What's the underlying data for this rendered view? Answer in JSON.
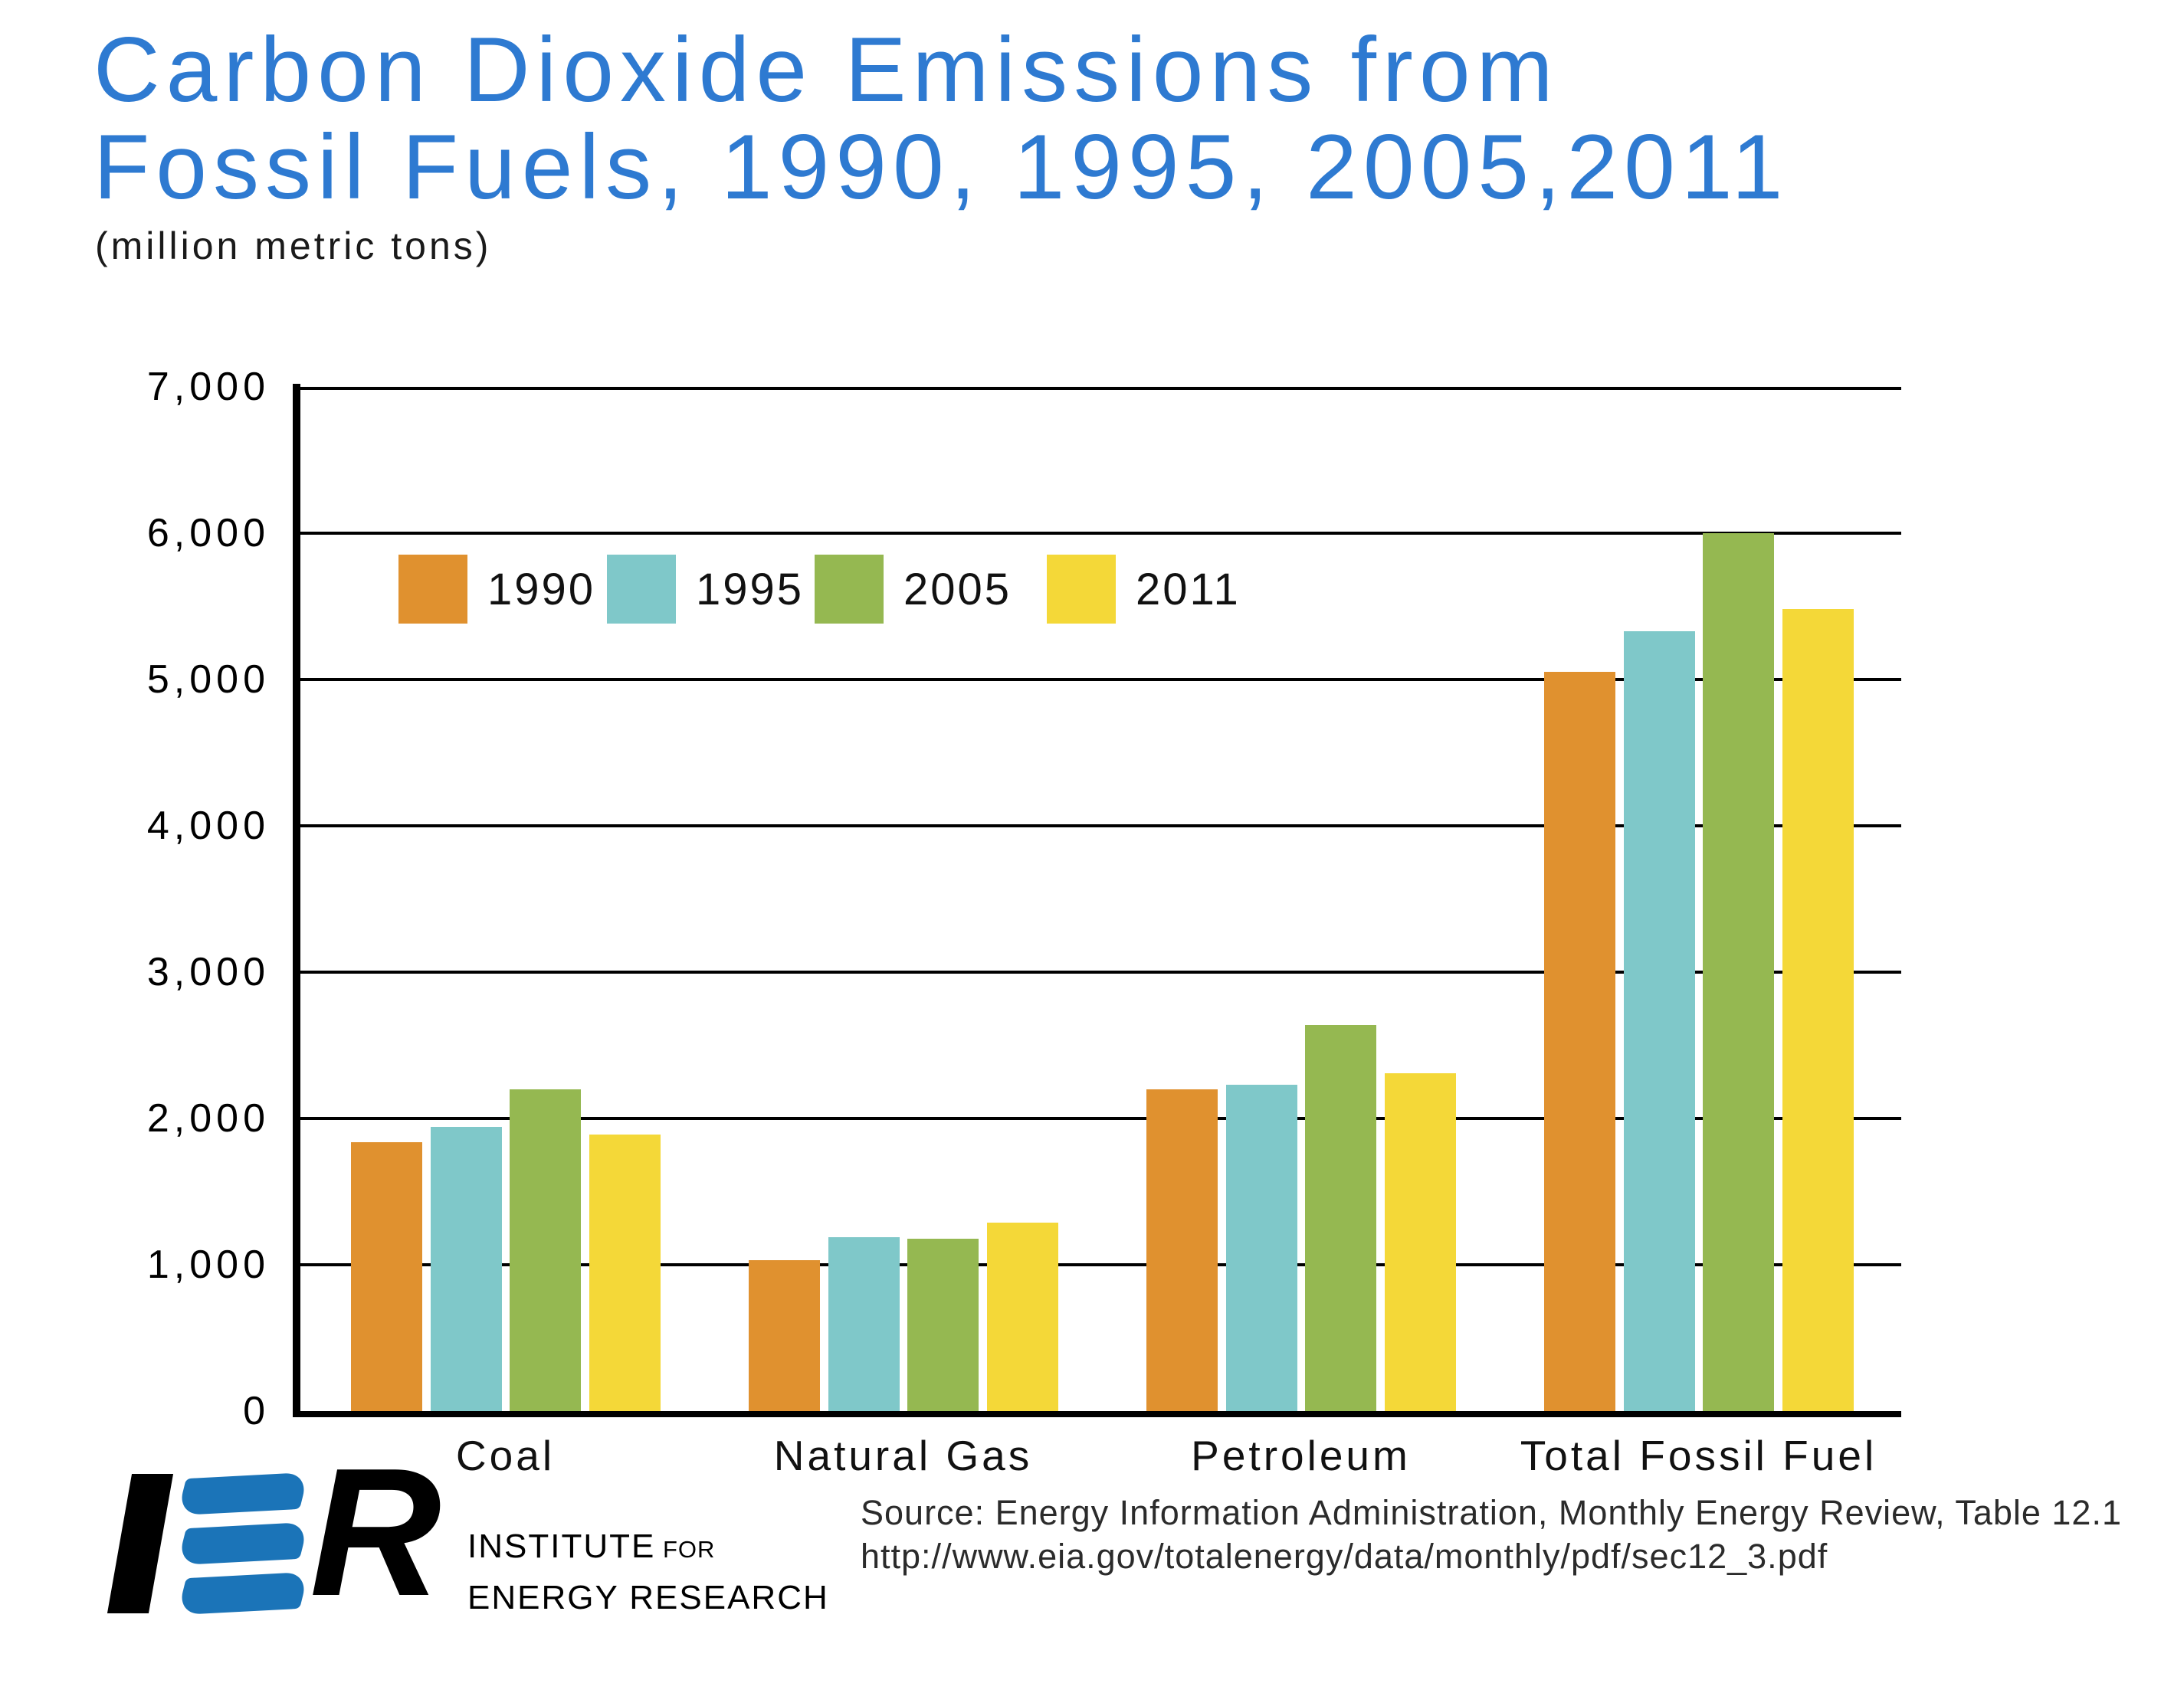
{
  "title": {
    "line1": "Carbon Dioxide Emissions from",
    "line2": "Fossil Fuels, 1990, 1995, 2005,2011",
    "subtitle": "(million metric tons)"
  },
  "chart_data": {
    "type": "bar",
    "title": "Carbon Dioxide Emissions from Fossil Fuels, 1990, 1995, 2005, 2011",
    "unit_label": "(million metric tons)",
    "categories": [
      "Coal",
      "Natural Gas",
      "Petroleum",
      "Total Fossil Fuel"
    ],
    "series": [
      {
        "name": "1990",
        "color": "#E0912F",
        "values": [
          1840,
          1030,
          2200,
          5050
        ]
      },
      {
        "name": "1995",
        "color": "#7FC8C9",
        "values": [
          1940,
          1190,
          2230,
          5330
        ]
      },
      {
        "name": "2005",
        "color": "#95B851",
        "values": [
          2200,
          1180,
          2640,
          6000
        ]
      },
      {
        "name": "2011",
        "color": "#F4D838",
        "values": [
          1890,
          1290,
          2310,
          5480
        ]
      }
    ],
    "ylim": [
      0,
      7000
    ],
    "ytick_interval": 1000,
    "yticks": [
      "7,000",
      "6,000",
      "5,000",
      "4,000",
      "3,000",
      "2,000",
      "1,000",
      "0"
    ],
    "grid": true,
    "legend_position": "top-left-inside",
    "xlabel": "",
    "ylabel": ""
  },
  "footer": {
    "logo": {
      "letter_r": "R",
      "line1_main": "INSTITUTE",
      "line1_small": " FOR",
      "line2": "ENERGY RESEARCH",
      "blue": "#1B74B8"
    },
    "source_line1": "Source: Energy Information Administration, Monthly Energy Review, Table 12.1",
    "source_line2": "http://www.eia.gov/totalenergy/data/monthly/pdf/sec12_3.pdf"
  },
  "colors": {
    "title_blue": "#2E7AD1",
    "axis_black": "#000000"
  }
}
